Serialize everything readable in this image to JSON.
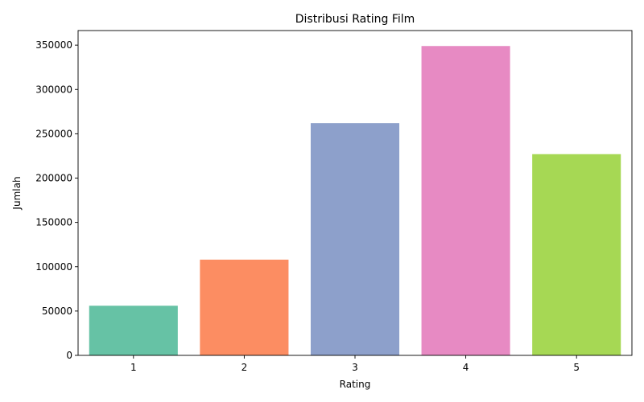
{
  "chart_data": {
    "type": "bar",
    "title": "Distribusi Rating Film",
    "xlabel": "Rating",
    "ylabel": "Jumlah",
    "categories": [
      "1",
      "2",
      "3",
      "4",
      "5"
    ],
    "values": [
      56000,
      108000,
      262000,
      349000,
      227000
    ],
    "ylim": [
      0,
      366450
    ],
    "yticks": [
      "0",
      "50000",
      "100000",
      "150000",
      "200000",
      "250000",
      "300000",
      "350000"
    ],
    "grid": false,
    "legend": "none",
    "colors": [
      "#66c2a5",
      "#fc8d62",
      "#8da0cb",
      "#e78ac3",
      "#a6d854"
    ]
  }
}
